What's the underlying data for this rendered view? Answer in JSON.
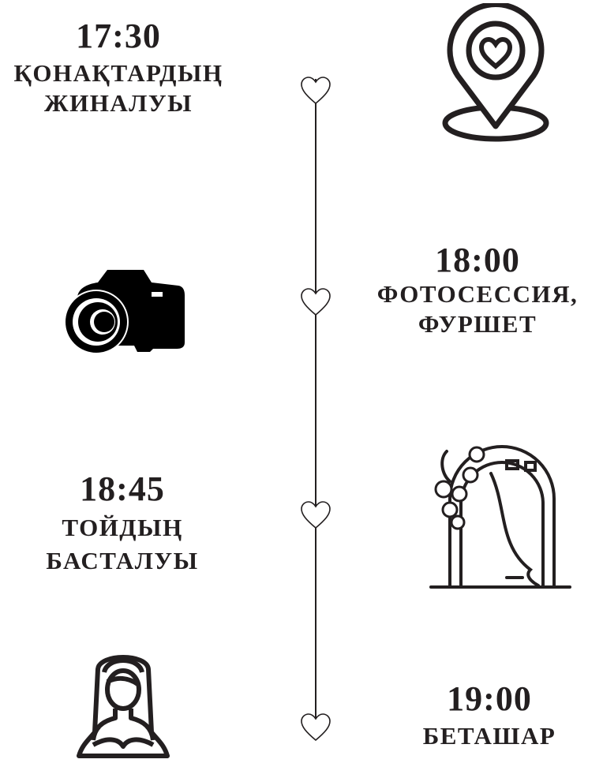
{
  "events": [
    {
      "time": "17:30",
      "line1": "ҚОНАҚТАРДЫҢ",
      "line2": "ЖИНАЛУЫ",
      "icon": "location-heart-icon"
    },
    {
      "time": "18:00",
      "line1": "ФОТОСЕССИЯ,",
      "line2": "ФУРШЕТ",
      "icon": "camera-icon"
    },
    {
      "time": "18:45",
      "line1": "ТОЙДЫҢ",
      "line2": "БАСТАЛУЫ",
      "icon": "wedding-arch-icon"
    },
    {
      "time": "19:00",
      "line1": "БЕТАШАР",
      "icon": "bride-icon"
    }
  ],
  "colors": {
    "ink": "#231f20",
    "background": "#ffffff"
  }
}
